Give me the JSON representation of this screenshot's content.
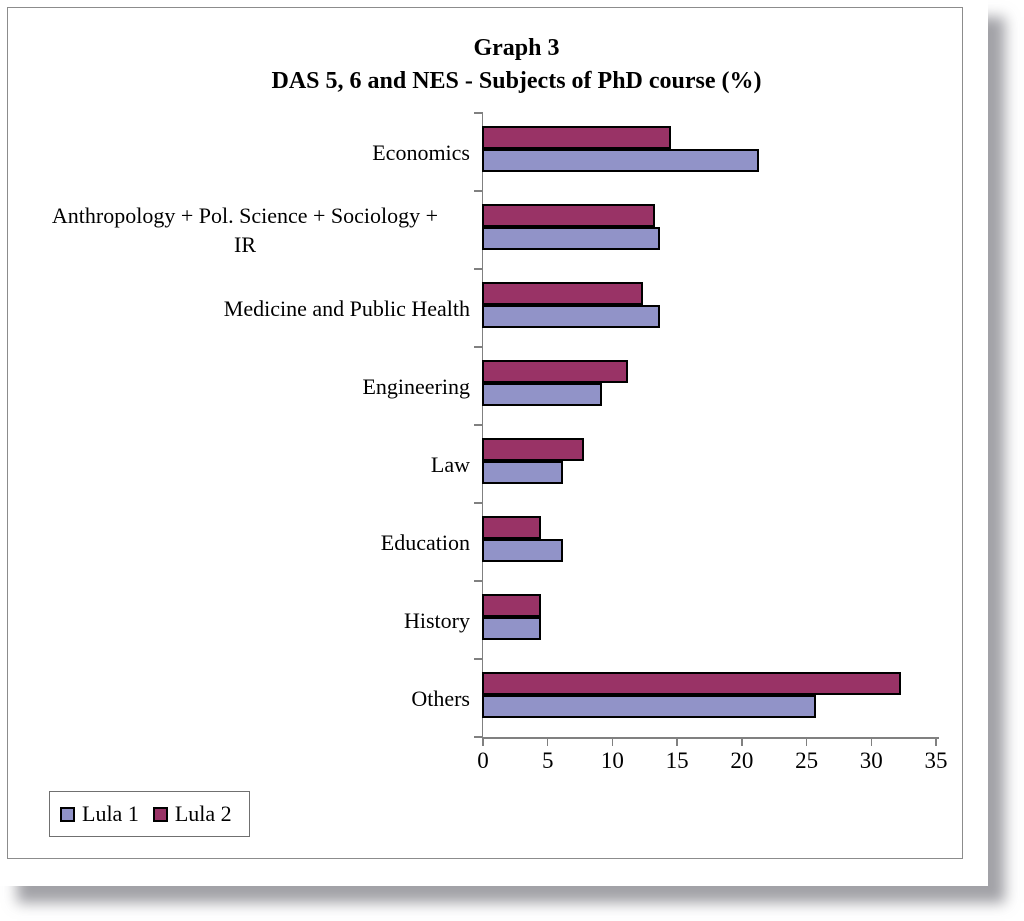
{
  "page": {
    "background": "#FFFFFF",
    "frame_border_color": "#8C8C8C",
    "shadow_color": "#9B9BA3"
  },
  "chart_data": {
    "type": "bar",
    "orientation": "horizontal",
    "title": "Graph 3",
    "subtitle": "DAS 5, 6 and NES - Subjects of PhD course (%)",
    "categories": [
      "Economics",
      "Anthropology + Pol. Science + Sociology + IR",
      "Medicine and Public Health",
      "Engineering",
      "Law",
      "Education",
      "History",
      "Others"
    ],
    "category_lines": [
      [
        "Economics"
      ],
      [
        "Anthropology + Pol. Science + Sociology +",
        "IR"
      ],
      [
        "Medicine and Public Health"
      ],
      [
        "Engineering"
      ],
      [
        "Law"
      ],
      [
        "Education"
      ],
      [
        "History"
      ],
      [
        "Others"
      ]
    ],
    "series": [
      {
        "name": "Lula 1",
        "color": "#9193C8",
        "values": [
          21.3,
          13.7,
          13.7,
          9.2,
          6.2,
          6.2,
          4.5,
          25.7
        ]
      },
      {
        "name": "Lula 2",
        "color": "#993366",
        "values": [
          14.5,
          13.3,
          12.4,
          11.2,
          7.8,
          4.5,
          4.5,
          32.3
        ]
      }
    ],
    "group_order_top_to_bottom": [
      "Lula 2",
      "Lula 1"
    ],
    "xlim": [
      0,
      35
    ],
    "xticks": [
      0,
      5,
      10,
      15,
      20,
      25,
      30,
      35
    ],
    "grid": false,
    "axis_color": "#808080",
    "bar_border_color": "#000000",
    "legend": {
      "position": "bottom-left",
      "entries": [
        "Lula 1",
        "Lula 2"
      ]
    }
  }
}
